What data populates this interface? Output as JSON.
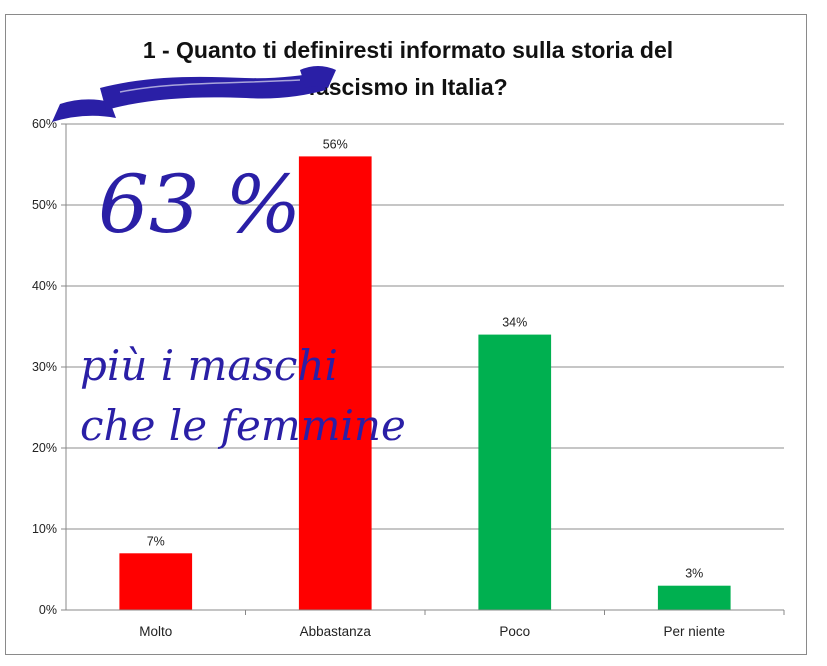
{
  "chart_data": {
    "type": "bar",
    "title_lines": [
      "1 - Quanto ti definiresti informato sulla storia del",
      "fascismo in Italia?"
    ],
    "categories": [
      "Molto",
      "Abbastanza",
      "Poco",
      "Per niente"
    ],
    "values": [
      7,
      56,
      34,
      3
    ],
    "value_labels": [
      "7%",
      "56%",
      "34%",
      "3%"
    ],
    "bar_colors": [
      "#ff0000",
      "#ff0000",
      "#00b050",
      "#00b050"
    ],
    "yticks": [
      "0%",
      "10%",
      "20%",
      "30%",
      "40%",
      "50%",
      "60%"
    ],
    "ylim": [
      0,
      60
    ],
    "grid": true,
    "legend": "none"
  },
  "annotations": {
    "big_percent": "63 %",
    "note_line1": "più i maschi",
    "note_line2": "che le femmine",
    "ribbon_color": "#2a1fa6"
  }
}
